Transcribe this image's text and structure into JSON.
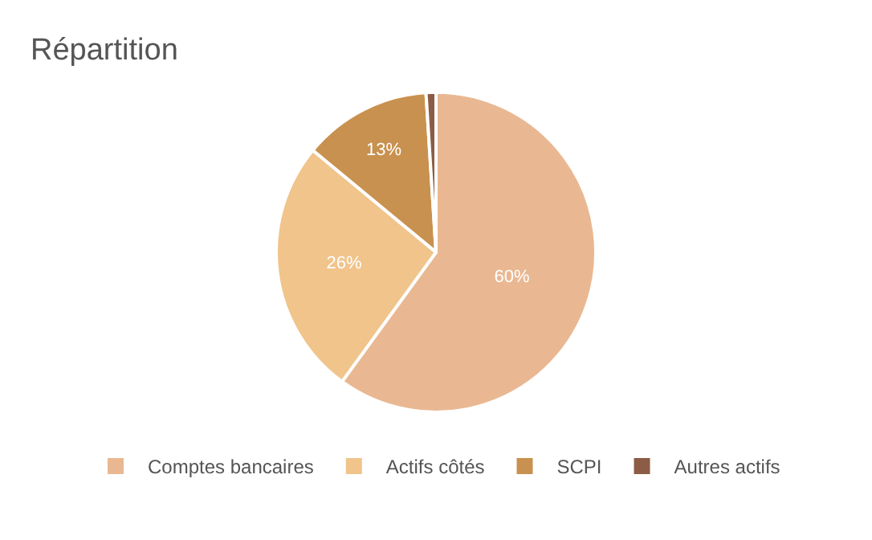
{
  "chart_data": {
    "type": "pie",
    "title": "Répartition",
    "categories": [
      "Comptes bancaires",
      "Actifs côtés",
      "SCPI",
      "Autres actifs"
    ],
    "values": [
      60,
      26,
      13,
      1
    ],
    "value_labels": [
      "60%",
      "26%",
      "13%",
      null
    ],
    "colors": [
      "#e9b892",
      "#f0c48b",
      "#c8914f",
      "#8c5c46"
    ],
    "legend": "bottom"
  }
}
